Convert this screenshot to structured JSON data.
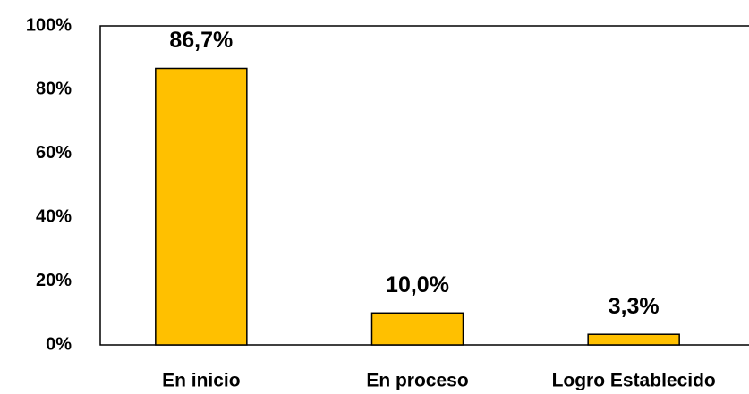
{
  "chart_data": {
    "type": "bar",
    "categories": [
      "En inicio",
      "En proceso",
      "Logro Establecido"
    ],
    "values": [
      86.7,
      10.0,
      3.3
    ],
    "value_labels": [
      "86,7%",
      "10,0%",
      "3,3%"
    ],
    "color": "#ffc000",
    "ylim": [
      0,
      100
    ],
    "yticks": [
      {
        "value": 0,
        "label": "0%"
      },
      {
        "value": 20,
        "label": "20%"
      },
      {
        "value": 40,
        "label": "40%"
      },
      {
        "value": 60,
        "label": "60%"
      },
      {
        "value": 80,
        "label": "80%"
      },
      {
        "value": 100,
        "label": "100%"
      }
    ],
    "grid": false
  }
}
